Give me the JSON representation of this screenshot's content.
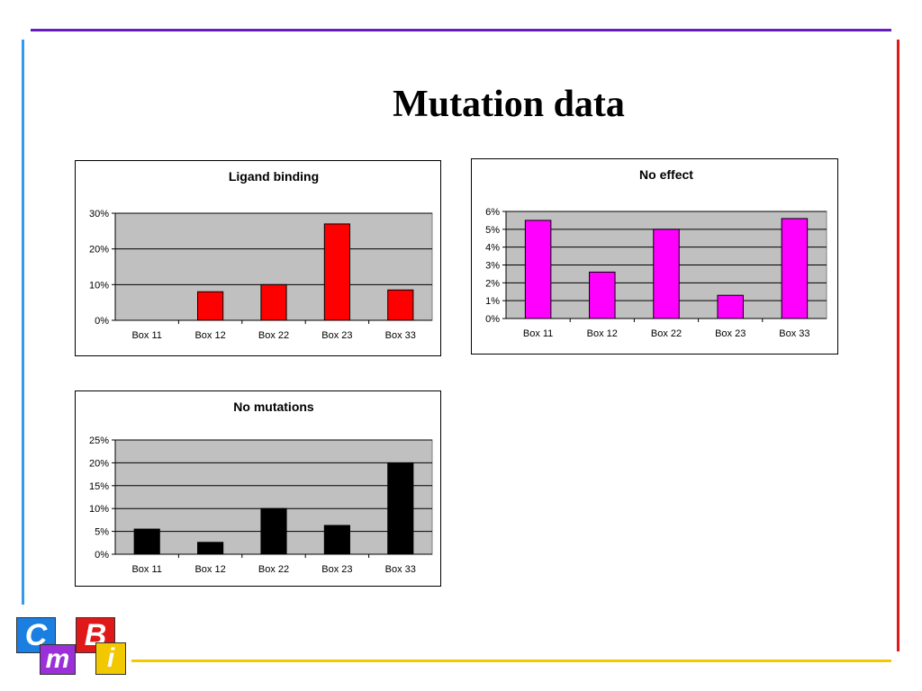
{
  "slide": {
    "title": "Mutation data"
  },
  "colors": {
    "top_line": "#6a1bbf",
    "left_line": "#3399ee",
    "right_line": "#e01818",
    "bottom_line": "#f2c800",
    "plot_bg": "#c0c0c0"
  },
  "logo": {
    "letters": [
      "C",
      "m",
      "B",
      "i"
    ],
    "colors": [
      "#1a7fe0",
      "#9b30d8",
      "#e01818",
      "#f2c800"
    ]
  },
  "chart_data": [
    {
      "type": "bar",
      "title": "Ligand binding",
      "categories": [
        "Box 11",
        "Box 12",
        "Box 22",
        "Box 23",
        "Box 33"
      ],
      "values": [
        0,
        8,
        10,
        27,
        8.5
      ],
      "ylim": [
        0,
        30
      ],
      "yticks": [
        "0%",
        "10%",
        "20%",
        "30%"
      ],
      "color": "#ff0000",
      "grid": true
    },
    {
      "type": "bar",
      "title": "No effect",
      "categories": [
        "Box 11",
        "Box 12",
        "Box 22",
        "Box 23",
        "Box 33"
      ],
      "values": [
        5.5,
        2.6,
        5.0,
        1.3,
        5.6
      ],
      "ylim": [
        0,
        6
      ],
      "yticks": [
        "0%",
        "1%",
        "2%",
        "3%",
        "4%",
        "5%",
        "6%"
      ],
      "color": "#ff00ff",
      "grid": true
    },
    {
      "type": "bar",
      "title": "No mutations",
      "categories": [
        "Box 11",
        "Box 12",
        "Box 22",
        "Box 23",
        "Box 33"
      ],
      "values": [
        5.5,
        2.6,
        10,
        6.3,
        20
      ],
      "ylim": [
        0,
        25
      ],
      "yticks": [
        "0%",
        "5%",
        "10%",
        "15%",
        "20%",
        "25%"
      ],
      "color": "#000000",
      "grid": true
    }
  ]
}
